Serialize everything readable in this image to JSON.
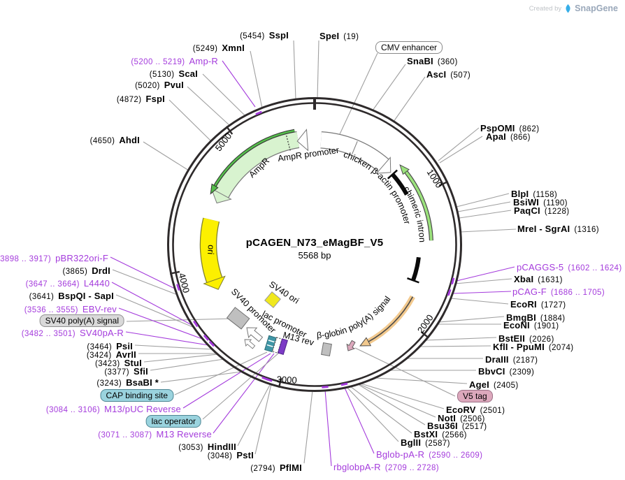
{
  "attribution": {
    "created_by": "Created by",
    "brand": "SnapGene"
  },
  "plasmid": {
    "title": "pCAGEN_N73_eMagBF_V5",
    "size": "5568 bp"
  },
  "ticks": {
    "t1000": "1000",
    "t2000": "2000",
    "t3000": "3000",
    "t4000": "4000",
    "t5000": "5000"
  },
  "features": {
    "amp_r_gene": "AmpR",
    "amp_r_promoter": "AmpR promoter",
    "cmv_enhancer": "CMV enhancer",
    "chicken_promoter": "chicken β-actin promoter",
    "chimeric_intron": "chimeric intron",
    "bglobin_polya": "β-globin poly(A) signal",
    "v5_tag": "V5 tag",
    "sv40_polya": "SV40 poly(A) signal",
    "cap_binding": "CAP binding site",
    "lac_operator": "lac operator",
    "lac_promoter": "lac promoter",
    "m13_rev": "M13 rev",
    "sv40_promoter": "SV40 promoter",
    "sv40_ori": "SV40 ori",
    "ori": "ori"
  },
  "sites": {
    "sspi": {
      "name": "SspI",
      "pos": "(5454)"
    },
    "xmni": {
      "name": "XmnI",
      "pos": "(5249)"
    },
    "scai": {
      "name": "ScaI",
      "pos": "(5130)"
    },
    "pvui": {
      "name": "PvuI",
      "pos": "(5020)"
    },
    "fspi": {
      "name": "FspI",
      "pos": "(4872)"
    },
    "ahdi": {
      "name": "AhdI",
      "pos": "(4650)"
    },
    "spei": {
      "name": "SpeI",
      "pos": "(19)"
    },
    "snabi": {
      "name": "SnaBI",
      "pos": "(360)"
    },
    "asci": {
      "name": "AscI",
      "pos": "(507)"
    },
    "pspomi": {
      "name": "PspOMI",
      "pos": "(862)"
    },
    "apai": {
      "name": "ApaI",
      "pos": "(866)"
    },
    "blpi": {
      "name": "BlpI",
      "pos": "(1158)"
    },
    "bsiwi": {
      "name": "BsiWI",
      "pos": "(1190)"
    },
    "paqci": {
      "name": "PaqCI",
      "pos": "(1228)"
    },
    "mrei_sgrai": {
      "name": "MreI - SgrAI",
      "pos": "(1316)"
    },
    "xbai": {
      "name": "XbaI",
      "pos": "(1631)"
    },
    "ecori": {
      "name": "EcoRI",
      "pos": "(1727)"
    },
    "bmgbi": {
      "name": "BmgBI",
      "pos": "(1884)"
    },
    "econi": {
      "name": "EcoNI",
      "pos": "(1901)"
    },
    "bsteii": {
      "name": "BstEII",
      "pos": "(2026)"
    },
    "kfli_ppumi": {
      "name": "KflI - PpuMI",
      "pos": "(2074)"
    },
    "draiii": {
      "name": "DraIII",
      "pos": "(2187)"
    },
    "bbvci": {
      "name": "BbvCI",
      "pos": "(2309)"
    },
    "agei": {
      "name": "AgeI",
      "pos": "(2405)"
    },
    "ecorv": {
      "name": "EcoRV",
      "pos": "(2501)"
    },
    "noti": {
      "name": "NotI",
      "pos": "(2506)"
    },
    "bsu36i": {
      "name": "Bsu36I",
      "pos": "(2517)"
    },
    "bstxi": {
      "name": "BstXI",
      "pos": "(2566)"
    },
    "bglii": {
      "name": "BglII",
      "pos": "(2587)"
    },
    "pflmi": {
      "name": "PflMI",
      "pos": "(2794)"
    },
    "psti": {
      "name": "PstI",
      "pos": "(3048)"
    },
    "hindiii": {
      "name": "HindIII",
      "pos": "(3053)"
    },
    "bsabi": {
      "name": "BsaBI *",
      "pos": "(3243)"
    },
    "sfii": {
      "name": "SfiI",
      "pos": "(3377)"
    },
    "stui": {
      "name": "StuI",
      "pos": "(3423)"
    },
    "avrii": {
      "name": "AvrII",
      "pos": "(3424)"
    },
    "psii": {
      "name": "PsiI",
      "pos": "(3464)"
    },
    "bspqi_sapi": {
      "name": "BspQI - SapI",
      "pos": "(3641)"
    },
    "drdi": {
      "name": "DrdI",
      "pos": "(3865)"
    }
  },
  "primers": {
    "amp_r": {
      "name": "Amp-R",
      "pos": "(5200 .. 5219)"
    },
    "pcaggs5": {
      "name": "pCAGGS-5",
      "pos": "(1602 .. 1624)"
    },
    "pcagf": {
      "name": "pCAG-F",
      "pos": "(1686 .. 1705)"
    },
    "bglob_pa_r": {
      "name": "Bglob-pA-R",
      "pos": "(2590 .. 2609)"
    },
    "rbglobpa_r": {
      "name": "rbglobpA-R",
      "pos": "(2709 .. 2728)"
    },
    "m13_reverse": {
      "name": "M13 Reverse",
      "pos": "(3071 .. 3087)"
    },
    "m13_puc_reverse": {
      "name": "M13/pUC Reverse",
      "pos": "(3084 .. 3106)"
    },
    "sv40pa_r": {
      "name": "SV40pA-R",
      "pos": "(3482 .. 3501)"
    },
    "ebv_rev": {
      "name": "EBV-rev",
      "pos": "(3536 .. 3555)"
    },
    "l4440": {
      "name": "L4440",
      "pos": "(3647 .. 3664)"
    },
    "pbr322ori_f": {
      "name": "pBR322ori-F",
      "pos": "(3898 .. 3917)"
    }
  },
  "colors": {
    "primer": "#A43BDC",
    "callout": "#9f9f9f",
    "ring": "#2E2A2B",
    "amp_fill": "#D8F3CF",
    "green_arrow": "#55BE4B",
    "intron_green": "#9CE37D",
    "yellow": "#FCF000",
    "polya_tan": "#F2C98E",
    "teal_box": "#9AD3DE",
    "pink_box": "#DCA8BC",
    "gray_box": "#D9D9D9",
    "feature_gray": "#BFBFBF",
    "purple_box": "#7D3BC6",
    "teal_feature": "#3F96A6",
    "logo_blue": "#36AEE8"
  }
}
